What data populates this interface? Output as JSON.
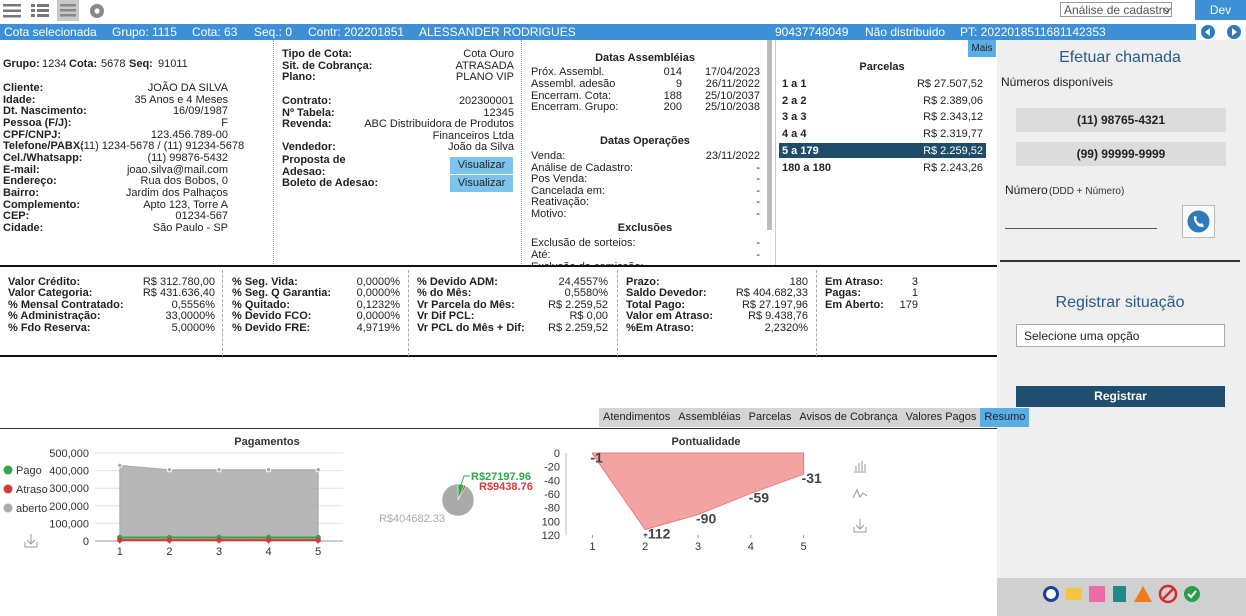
{
  "toolbar": {
    "view_select": "Análise de cadastro",
    "env": "Dev",
    "more": "Mais"
  },
  "header": {
    "items": [
      "Cota selecionada",
      "Grupo: 1115",
      "Cota: 63",
      "Seq.: 0",
      "Contr: 202201851",
      "ALESSANDER RODRIGUES",
      "90437748049",
      "Não distribuido",
      "PT: 2022018511681142353"
    ]
  },
  "cliente": {
    "header": [
      {
        "label": "Grupo:",
        "value": "1234"
      },
      {
        "label": "Cota:",
        "value": "5678"
      },
      {
        "label": "Seq:",
        "value": "91011"
      }
    ],
    "rows": [
      {
        "label": "Cliente:",
        "value": "JOÃO DA SILVA"
      },
      {
        "label": "Idade:",
        "value": "35 Anos e 4 Meses"
      },
      {
        "label": "Dt. Nascimento:",
        "value": "16/09/1987"
      },
      {
        "label": "Pessoa (F/J):",
        "value": "F"
      },
      {
        "label": "CPF/CNPJ:",
        "value": "123.456.789-00"
      },
      {
        "label": "Telefone/PABX:",
        "value": "(11) 1234-5678 / (11) 91234-5678"
      },
      {
        "label": "Cel./Whatsapp:",
        "value": "(11) 99876-5432"
      },
      {
        "label": "E-mail:",
        "value": "joao.silva@mail.com"
      },
      {
        "label": "Endereço:",
        "value": "Rua dos Bobos, 0"
      },
      {
        "label": "Bairro:",
        "value": "Jardim dos Palhaços"
      },
      {
        "label": "Complemento:",
        "value": "Apto 123, Torre A"
      },
      {
        "label": "CEP:",
        "value": "01234-567"
      },
      {
        "label": "Cidade:",
        "value": "São Paulo - SP"
      }
    ]
  },
  "cota": {
    "rows": [
      {
        "label": "Tipo de Cota:",
        "value": "Cota Ouro"
      },
      {
        "label": "Sit. de Cobrança:",
        "value": "ATRASADA"
      },
      {
        "label": "Plano:",
        "value": "PLANO VIP"
      },
      {
        "label": "Contrato:",
        "value": "202300001"
      },
      {
        "label": "Nº Tabela:",
        "value": "12345"
      },
      {
        "label": "Revenda:",
        "value": "ABC Distribuidora de Produtos Financeiros Ltda"
      },
      {
        "label": "Vendedor:",
        "value": "João da Silva"
      }
    ],
    "actions": [
      {
        "label": "Proposta de Adesao:",
        "action": "Visualizar"
      },
      {
        "label": "Boleto de Adesao:",
        "action": "Visualizar"
      }
    ]
  },
  "datas": {
    "assembleias": {
      "title": "Datas Assembléias",
      "rows": [
        {
          "label": "Próx. Assembl.",
          "number": "014",
          "date": "17/04/2023"
        },
        {
          "label": "Assembl. adesão",
          "number": "9",
          "date": "26/11/2022"
        },
        {
          "label": "Encerram. Cota:",
          "number": "188",
          "date": "25/10/2037"
        },
        {
          "label": "Encerram. Grupo:",
          "number": "200",
          "date": "25/10/2038"
        }
      ]
    },
    "operacoes": {
      "title": "Datas Operações",
      "rows": [
        {
          "label": "Venda:",
          "value": "23/11/2022"
        },
        {
          "label": "Análise de Cadastro:",
          "value": "-"
        },
        {
          "label": "Pos Venda:",
          "value": "-"
        },
        {
          "label": "Cancelada em:",
          "value": "-"
        },
        {
          "label": "Reativação:",
          "value": "-"
        },
        {
          "label": "Motivo:",
          "value": "-"
        }
      ]
    },
    "exclusoes": {
      "title": "Exclusões",
      "rows": [
        {
          "label": "Exclusão de sorteios:",
          "value": "-"
        },
        {
          "label": "Até:",
          "value": "-"
        },
        {
          "label": "Exclusão da comissão:"
        }
      ]
    }
  },
  "parcelas": {
    "title": "Parcelas",
    "selected": 4,
    "rows": [
      {
        "range": "1 a 1",
        "value": "R$ 27.507,52"
      },
      {
        "range": "2 a 2",
        "value": "R$ 2.389,06"
      },
      {
        "range": "3 a 3",
        "value": "R$ 2.343,12"
      },
      {
        "range": "4 a 4",
        "value": "R$ 2.319,77"
      },
      {
        "range": "5 a 179",
        "value": "R$ 2.259,52"
      },
      {
        "range": "180 a 180",
        "value": "R$ 2.243,26"
      }
    ]
  },
  "resumo": {
    "columns": [
      [
        {
          "label": "Valor Crédito:",
          "value": "R$ 312.780,00"
        },
        {
          "label": "Valor Categoria:",
          "value": "R$ 431.636,40"
        },
        {
          "label": "% Mensal Contratado:",
          "value": "0,5556%"
        },
        {
          "label": "% Administração:",
          "value": "33,0000%"
        },
        {
          "label": "% Fdo Reserva:",
          "value": "5,0000%"
        }
      ],
      [
        {
          "label": "% Seg. Vida:",
          "value": "0,0000%"
        },
        {
          "label": "% Seg. Q Garantia:",
          "value": "0,0000%"
        },
        {
          "label": "% Quitado:",
          "value": "0,1232%"
        },
        {
          "label": "% Devido FCO:",
          "value": "0,0000%"
        },
        {
          "label": "% Devido FRE:",
          "value": "4,9719%"
        }
      ],
      [
        {
          "label": "% Devido ADM:",
          "value": "24,4557%"
        },
        {
          "label": "% do Mês:",
          "value": "0,5580%"
        },
        {
          "label": "Vr Parcela do Mês:",
          "value": "R$ 2.259,52"
        },
        {
          "label": "Vr Dif PCL:",
          "value": "R$ 0,00"
        },
        {
          "label": "Vr PCL do Mês + Dif:",
          "value": "R$ 2.259,52"
        }
      ],
      [
        {
          "label": "Prazo:",
          "value": "180"
        },
        {
          "label": "Saldo Devedor:",
          "value": "R$ 404.682,33"
        },
        {
          "label": "Total Pago:",
          "value": "R$ 27.197,96"
        },
        {
          "label": "Valor em Atraso:",
          "value": "R$ 9.438,76"
        },
        {
          "label": "%Em Atraso:",
          "value": "2,2320%"
        }
      ],
      [
        {
          "label": "Em Atraso:",
          "value": "3"
        },
        {
          "label": "Pagas:",
          "value": "1"
        },
        {
          "label": "Em Aberto:",
          "value": "179"
        }
      ]
    ]
  },
  "tabs": {
    "items": [
      "Atendimentos",
      "Assembléias",
      "Parcelas",
      "Avisos de Cobrança",
      "Valores Pagos",
      "Resumo"
    ],
    "active": 5
  },
  "panel": {
    "title": "Efetuar chamada",
    "numbers_label": "Números disponíveis",
    "numbers": [
      "(11) 98765-4321",
      "(99) 99999-9999"
    ],
    "number_field": "Número",
    "number_hint": "(DDD + Número)",
    "situacao_title": "Registrar situação",
    "situacao_select": "Selecione uma opção",
    "submit": "Registrar"
  },
  "chart_data": [
    {
      "type": "line",
      "title": "Pagamentos",
      "x": [
        1,
        2,
        3,
        4,
        5
      ],
      "xlim": [
        0.5,
        5.5
      ],
      "xticks": [
        1,
        2,
        3,
        4,
        5
      ],
      "ylim": [
        0,
        500000
      ],
      "yticks": [
        0,
        {
          "value": 100000,
          "label": "100,000"
        },
        {
          "value": 200000,
          "label": "200,000"
        },
        {
          "value": 300000,
          "label": "300,000"
        },
        {
          "value": 400000,
          "label": "400,000"
        },
        {
          "value": 500000,
          "label": "500,000"
        }
      ],
      "grid": true,
      "legend": "left",
      "series": [
        {
          "name": "Pago",
          "color": "#2ea84a",
          "values": [
            20000,
            20000,
            20000,
            20000,
            20000
          ]
        },
        {
          "name": "Atraso",
          "color": "#d43b3b",
          "values": [
            5000,
            5000,
            5000,
            5000,
            5000
          ]
        },
        {
          "name": "aberto",
          "color": "#aaaaaa",
          "area": true,
          "values": [
            430000,
            405000,
            405000,
            405000,
            405000
          ]
        }
      ]
    },
    {
      "type": "pie",
      "values": [
        27197.96,
        9438.76,
        404682.33
      ],
      "value_labels": [
        "R$27197.96",
        "R$9438.76",
        "R$404682.33"
      ],
      "colors": [
        "#2ea84a",
        "#d43b3b",
        "#aaaaaa"
      ]
    },
    {
      "type": "area",
      "title": "Pontualidade",
      "x": [
        1,
        2,
        3,
        4,
        5
      ],
      "xlim": [
        0.5,
        5.5
      ],
      "xticks": [
        1,
        2,
        3,
        4,
        5
      ],
      "ylim": [
        -120,
        0
      ],
      "yticks": [
        0,
        -20,
        -40,
        -60,
        -80,
        {
          "value": -100,
          "label": "100"
        },
        {
          "value": -120,
          "label": "120"
        }
      ],
      "grid": false,
      "data_labels": true,
      "color": "#f4a3a3",
      "values": [
        -1,
        -112,
        -90,
        -59,
        -31
      ]
    }
  ]
}
